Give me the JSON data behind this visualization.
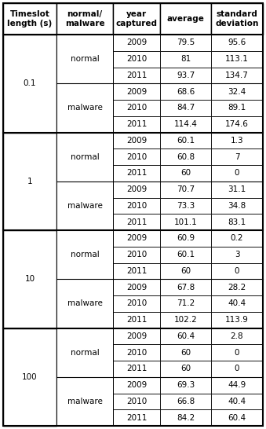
{
  "headers": [
    "Timeslot\nlength (s)",
    "normal/\nmalware",
    "year\ncaptured",
    "average",
    "standard\ndeviation"
  ],
  "col0_groups": [
    [
      0,
      6,
      "0.1"
    ],
    [
      6,
      12,
      "1"
    ],
    [
      12,
      18,
      "10"
    ],
    [
      18,
      24,
      "100"
    ]
  ],
  "col1_groups": [
    [
      0,
      3,
      "normal"
    ],
    [
      3,
      6,
      "malware"
    ],
    [
      6,
      9,
      "normal"
    ],
    [
      9,
      12,
      "malware"
    ],
    [
      12,
      15,
      "normal"
    ],
    [
      15,
      18,
      "malware"
    ],
    [
      18,
      21,
      "normal"
    ],
    [
      21,
      24,
      "malware"
    ]
  ],
  "data_rows": [
    [
      "2009",
      "79.5",
      "95.6"
    ],
    [
      "2010",
      "81",
      "113.1"
    ],
    [
      "2011",
      "93.7",
      "134.7"
    ],
    [
      "2009",
      "68.6",
      "32.4"
    ],
    [
      "2010",
      "84.7",
      "89.1"
    ],
    [
      "2011",
      "114.4",
      "174.6"
    ],
    [
      "2009",
      "60.1",
      "1.3"
    ],
    [
      "2010",
      "60.8",
      "7"
    ],
    [
      "2011",
      "60",
      "0"
    ],
    [
      "2009",
      "70.7",
      "31.1"
    ],
    [
      "2010",
      "73.3",
      "34.8"
    ],
    [
      "2011",
      "101.1",
      "83.1"
    ],
    [
      "2009",
      "60.9",
      "0.2"
    ],
    [
      "2010",
      "60.1",
      "3"
    ],
    [
      "2011",
      "60",
      "0"
    ],
    [
      "2009",
      "67.8",
      "28.2"
    ],
    [
      "2010",
      "71.2",
      "40.4"
    ],
    [
      "2011",
      "102.2",
      "113.9"
    ],
    [
      "2009",
      "60.4",
      "2.8"
    ],
    [
      "2010",
      "60",
      "0"
    ],
    [
      "2011",
      "60",
      "0"
    ],
    [
      "2009",
      "69.3",
      "44.9"
    ],
    [
      "2010",
      "66.8",
      "40.4"
    ],
    [
      "2011",
      "84.2",
      "60.4"
    ]
  ],
  "border_color": "#000000",
  "font_size": 7.5,
  "header_font_size": 7.5,
  "figsize": [
    3.39,
    5.46
  ],
  "dpi": 100
}
